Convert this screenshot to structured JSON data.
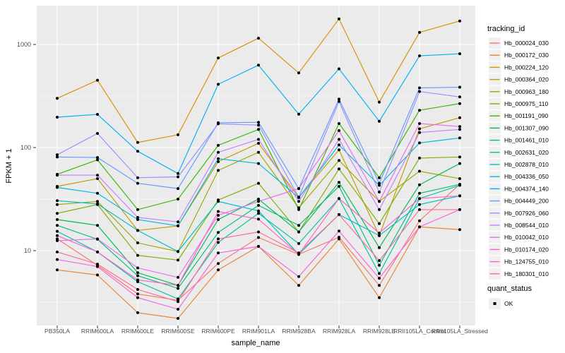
{
  "chart_data": {
    "type": "line",
    "title": "",
    "xlabel": "sample_name",
    "ylabel": "FPKM + 1",
    "x_categories": [
      "PB350LA",
      "RRIM600LA",
      "RRIM600LE",
      "RRIM600SE",
      "RRIM600PE",
      "RRIM901LA",
      "RRIM928BA",
      "RRIM928LA",
      "RRIM928LE",
      "RRII105LA_Control",
      "RRII105LA_Stressed"
    ],
    "y_axis": {
      "scale": "log10",
      "tick_labels": [
        "10",
        "100",
        "1000"
      ],
      "tick_values": [
        10,
        100,
        1000
      ],
      "minor_values": [
        3.162,
        31.62,
        316.2
      ],
      "range": [
        1.8,
        2400
      ]
    },
    "grid": true,
    "panel_bg": "#EBEBEB",
    "grid_color": "#FFFFFF",
    "point_color": "#000000",
    "legend": {
      "title": "tracking_id",
      "position": "right"
    },
    "quant_legend": {
      "title": "quant_status",
      "items": [
        "OK"
      ]
    },
    "series": [
      {
        "name": "Hb_000024_030",
        "color": "#F8766D",
        "values": [
          13,
          7.2,
          3.8,
          3.3,
          7.5,
          13.4,
          9.2,
          13.5,
          4.6,
          19.5,
          44
        ]
      },
      {
        "name": "Hb_000172_030",
        "color": "#EA8331",
        "values": [
          6.5,
          5.8,
          2.5,
          2.2,
          6.5,
          11,
          4.6,
          13,
          3.5,
          17,
          16
        ]
      },
      {
        "name": "Hb_000224_120",
        "color": "#D89000",
        "values": [
          300,
          450,
          112,
          133,
          740,
          1150,
          530,
          1770,
          276,
          1310,
          1690
        ]
      },
      {
        "name": "Hb_000364_020",
        "color": "#C09B00",
        "values": [
          42,
          50,
          15.7,
          17.4,
          73,
          110,
          33,
          95,
          14,
          152,
          195
        ]
      },
      {
        "name": "Hb_000963_180",
        "color": "#A3A500",
        "values": [
          28,
          30,
          11.9,
          9.8,
          60,
          90,
          26,
          75,
          30,
          59,
          50
        ]
      },
      {
        "name": "Hb_000975_110",
        "color": "#7CAE00",
        "values": [
          23,
          28,
          9,
          8.1,
          31,
          45,
          15.2,
          62,
          18.3,
          79,
          81
        ]
      },
      {
        "name": "Hb_001191_090",
        "color": "#39B600",
        "values": [
          55,
          76,
          25,
          31.6,
          105,
          150,
          25,
          171,
          51,
          230,
          267
        ]
      },
      {
        "name": "Hb_001307_090",
        "color": "#00BB4E",
        "values": [
          20,
          17.6,
          6.1,
          4.6,
          20,
          31.6,
          15.2,
          46,
          10.7,
          43.5,
          70
        ]
      },
      {
        "name": "Hb_001461_010",
        "color": "#00BF7D",
        "values": [
          17.6,
          12.9,
          5.7,
          4.3,
          15,
          27.5,
          17.6,
          42,
          7.2,
          36,
          44
        ]
      },
      {
        "name": "Hb_002631_020",
        "color": "#00C1A3",
        "values": [
          15.4,
          9.7,
          5,
          3.4,
          12,
          23,
          11.7,
          32,
          6,
          32,
          43
        ]
      },
      {
        "name": "Hb_002878_010",
        "color": "#00BFC4",
        "values": [
          30.5,
          28.4,
          15.7,
          9.8,
          30,
          24.3,
          9.2,
          22.4,
          14,
          28,
          34
        ]
      },
      {
        "name": "Hb_004336_050",
        "color": "#00BADE",
        "values": [
          41,
          36,
          20,
          17.4,
          78,
          70,
          32.7,
          106,
          43,
          111,
          124
        ]
      },
      {
        "name": "Hb_004374_140",
        "color": "#00B0F6",
        "values": [
          197,
          210,
          92,
          56,
          411,
          630,
          211,
          580,
          180,
          776,
          813
        ]
      },
      {
        "name": "Hb_004449_200",
        "color": "#619CFF",
        "values": [
          81,
          80,
          45,
          40,
          174,
          176,
          40,
          295,
          45,
          379,
          385
        ]
      },
      {
        "name": "Hb_007926_060",
        "color": "#9590FF",
        "values": [
          85,
          137,
          51,
          52,
          170,
          165,
          33,
          280,
          37,
          350,
          310
        ]
      },
      {
        "name": "Hb_008544_010",
        "color": "#C77CFF",
        "values": [
          54,
          54,
          21,
          19,
          90,
          120,
          30,
          120,
          25,
          140,
          150
        ]
      },
      {
        "name": "Hb_010042_010",
        "color": "#E76BF3",
        "values": [
          12.5,
          13,
          6.8,
          5.5,
          22,
          30,
          40,
          146,
          30,
          171,
          160
        ]
      },
      {
        "name": "Hb_010174_020",
        "color": "#FA62DB",
        "values": [
          8.2,
          7,
          3.5,
          2.7,
          9.5,
          11,
          5.6,
          15.5,
          5.4,
          17,
          25
        ]
      },
      {
        "name": "Hb_124755_010",
        "color": "#FF61C9",
        "values": [
          14,
          9.7,
          5.2,
          4.6,
          24,
          20.2,
          9.2,
          32,
          14.8,
          32,
          34
        ]
      },
      {
        "name": "Hb_180301_010",
        "color": "#FF689E",
        "values": [
          9.7,
          7.4,
          4.2,
          3.2,
          13,
          15.2,
          9.5,
          22.4,
          8,
          25,
          25
        ]
      }
    ]
  }
}
